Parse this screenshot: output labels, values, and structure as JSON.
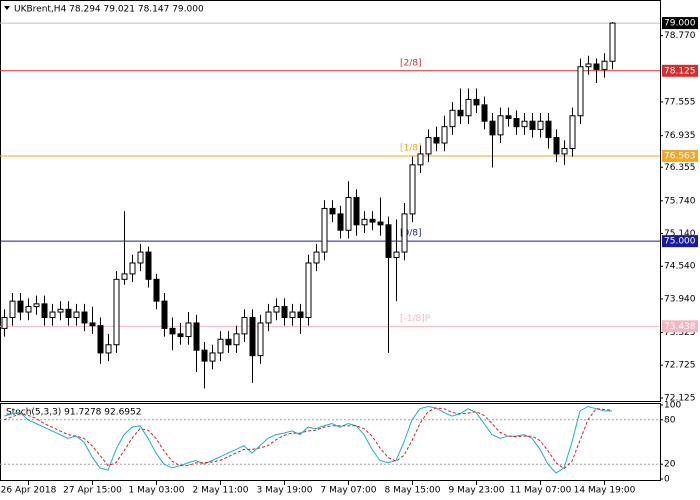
{
  "chart_data": [
    {
      "type": "candlestick",
      "title": "UKBrent,H4  78.294 79.021 78.147 79.000",
      "categories": [
        null,
        null,
        null,
        "26 Apr 2018",
        null,
        null,
        null,
        null,
        null,
        null,
        null,
        "27 Apr 15:00",
        null,
        null,
        null,
        null,
        null,
        null,
        null,
        "1 May 03:00",
        null,
        null,
        null,
        null,
        null,
        null,
        null,
        "2 May 11:00",
        null,
        null,
        null,
        null,
        null,
        null,
        null,
        "3 May 19:00",
        null,
        null,
        null,
        null,
        null,
        null,
        null,
        "7 May 07:00",
        null,
        null,
        null,
        null,
        null,
        null,
        null,
        "8 May 15:00",
        null,
        null,
        null,
        null,
        null,
        null,
        null,
        "9 May 23:00",
        null,
        null,
        null,
        null,
        null,
        null,
        null,
        "11 May 07:00",
        null,
        null,
        null,
        null,
        null,
        null,
        null,
        "14 May 19:00",
        null
      ],
      "open": [
        73.4,
        73.6,
        73.9,
        73.7,
        73.8,
        73.85,
        73.6,
        73.7,
        73.75,
        73.6,
        73.7,
        73.5,
        73.45,
        72.95,
        73.1,
        74.3,
        74.4,
        74.6,
        74.8,
        74.3,
        73.9,
        73.4,
        73.3,
        73.25,
        73.5,
        73.0,
        72.8,
        72.95,
        73.2,
        73.1,
        73.3,
        73.6,
        72.9,
        73.5,
        73.7,
        73.8,
        73.6,
        73.7,
        73.6,
        74.6,
        74.8,
        75.6,
        75.5,
        75.2,
        75.8,
        75.3,
        75.4,
        75.35,
        75.3,
        74.7,
        74.8,
        75.5,
        76.4,
        76.6,
        76.9,
        76.8,
        77.1,
        77.4,
        77.3,
        77.6,
        77.5,
        77.2,
        76.95,
        77.3,
        77.25,
        77.1,
        77.2,
        77.05,
        77.2,
        76.9,
        76.6,
        76.7,
        77.3,
        78.2,
        78.25,
        78.15,
        78.3
      ],
      "high": [
        73.75,
        74.05,
        74.05,
        73.95,
        74.0,
        74.0,
        73.85,
        73.9,
        73.9,
        73.85,
        73.85,
        73.8,
        73.6,
        73.3,
        74.45,
        75.55,
        74.75,
        74.95,
        74.9,
        74.4,
        74.05,
        73.6,
        73.5,
        73.7,
        73.65,
        73.15,
        73.1,
        73.35,
        73.35,
        73.45,
        73.75,
        73.75,
        73.65,
        73.85,
        73.95,
        73.95,
        73.85,
        73.85,
        74.75,
        74.95,
        75.75,
        75.75,
        75.65,
        76.1,
        75.95,
        75.55,
        75.55,
        75.8,
        75.45,
        75.4,
        75.7,
        76.55,
        76.75,
        77.05,
        77.1,
        77.3,
        77.55,
        77.8,
        77.8,
        77.8,
        77.65,
        77.35,
        77.45,
        77.45,
        77.4,
        77.35,
        77.35,
        77.35,
        77.35,
        77.05,
        76.85,
        77.45,
        78.35,
        78.4,
        78.35,
        78.45,
        79.02
      ],
      "low": [
        73.25,
        73.45,
        73.55,
        73.55,
        73.65,
        73.45,
        73.45,
        73.55,
        73.45,
        73.45,
        73.35,
        73.3,
        72.75,
        72.8,
        72.95,
        74.2,
        74.25,
        74.45,
        74.15,
        73.75,
        73.25,
        73.0,
        73.1,
        73.1,
        72.6,
        72.3,
        72.65,
        72.8,
        72.95,
        72.95,
        73.15,
        72.4,
        72.75,
        73.35,
        73.55,
        73.45,
        73.45,
        73.3,
        73.45,
        74.45,
        74.65,
        75.35,
        75.05,
        75.05,
        75.1,
        75.15,
        75.2,
        75.1,
        72.95,
        73.9,
        74.65,
        75.35,
        76.25,
        76.45,
        76.65,
        76.65,
        76.95,
        77.15,
        77.15,
        77.35,
        77.05,
        76.35,
        76.8,
        77.1,
        76.95,
        76.95,
        76.9,
        76.9,
        76.7,
        76.45,
        76.4,
        76.55,
        77.15,
        78.05,
        77.9,
        78.0,
        78.15
      ],
      "close": [
        73.6,
        73.9,
        73.7,
        73.8,
        73.85,
        73.6,
        73.7,
        73.75,
        73.6,
        73.7,
        73.5,
        73.45,
        72.95,
        73.1,
        74.3,
        74.4,
        74.6,
        74.8,
        74.3,
        73.9,
        73.4,
        73.3,
        73.25,
        73.5,
        73.0,
        72.8,
        72.95,
        73.2,
        73.1,
        73.3,
        73.6,
        72.9,
        73.5,
        73.7,
        73.8,
        73.6,
        73.7,
        73.6,
        74.6,
        74.8,
        75.6,
        75.5,
        75.2,
        75.8,
        75.3,
        75.4,
        75.35,
        75.3,
        74.7,
        74.8,
        75.5,
        76.4,
        76.6,
        76.9,
        76.8,
        77.1,
        77.4,
        77.3,
        77.6,
        77.5,
        77.2,
        76.95,
        77.3,
        77.25,
        77.1,
        77.2,
        77.05,
        77.2,
        76.9,
        76.6,
        76.7,
        77.3,
        78.2,
        78.25,
        78.15,
        78.3,
        79.0
      ],
      "up_color": "#ffffff",
      "down_color": "#000000",
      "ylim": [
        72.05,
        79.35
      ],
      "yticks": [
        {
          "value": 78.77,
          "label": "78.770"
        },
        {
          "value": 77.555,
          "label": "77.555"
        },
        {
          "value": 76.935,
          "label": "76.935"
        },
        {
          "value": 76.355,
          "label": "76.355"
        },
        {
          "value": 75.74,
          "label": "75.740"
        },
        {
          "value": 75.14,
          "label": "75.140"
        },
        {
          "value": 74.54,
          "label": "74.540"
        },
        {
          "value": 73.94,
          "label": "73.940"
        },
        {
          "value": 73.325,
          "label": "73.325"
        },
        {
          "value": 72.725,
          "label": "72.725"
        },
        {
          "value": 72.125,
          "label": "72.125"
        }
      ],
      "price_marker": {
        "value": 79.0,
        "label": "79.000",
        "color": "#000000"
      },
      "levels": [
        {
          "value": 78.125,
          "price_label": "78.125",
          "label": "[2/8]",
          "color": "#d32f2f"
        },
        {
          "value": 76.563,
          "price_label": "76.563",
          "label": "[1/8]",
          "color": "#f5a623"
        },
        {
          "value": 75.0,
          "price_label": "75.000",
          "label": "[0/8]",
          "color": "#1a1aa0"
        },
        {
          "value": 73.438,
          "price_label": "73.438",
          "label": "[-1/8]P",
          "color": "#f4b6c2"
        }
      ]
    },
    {
      "type": "line",
      "title": "Stoch(5,3,3) 91.7278 92.6952",
      "ylim": [
        0,
        100
      ],
      "yticks": [
        100,
        80,
        20,
        0
      ],
      "levels": [
        80,
        20
      ],
      "series": [
        {
          "color": "#17b3c4",
          "values": [
            85,
            88,
            90,
            80,
            75,
            70,
            65,
            60,
            55,
            58,
            50,
            30,
            15,
            12,
            40,
            60,
            70,
            72,
            55,
            35,
            20,
            15,
            18,
            22,
            25,
            20,
            25,
            30,
            35,
            40,
            45,
            35,
            45,
            55,
            60,
            62,
            65,
            60,
            70,
            68,
            72,
            75,
            70,
            75,
            72,
            60,
            40,
            25,
            22,
            25,
            50,
            80,
            95,
            98,
            96,
            90,
            85,
            88,
            95,
            90,
            75,
            60,
            55,
            58,
            58,
            60,
            55,
            40,
            20,
            8,
            15,
            50,
            92,
            98,
            95,
            92,
            92
          ]
        },
        {
          "color": "#d62020",
          "dashed": true,
          "values": [
            80,
            84,
            88,
            86,
            82,
            75,
            70,
            65,
            60,
            58,
            55,
            45,
            32,
            18,
            22,
            38,
            55,
            68,
            66,
            55,
            38,
            24,
            18,
            18,
            22,
            22,
            23,
            25,
            30,
            35,
            40,
            40,
            42,
            45,
            53,
            59,
            62,
            62,
            65,
            66,
            70,
            72,
            72,
            72,
            72,
            68,
            58,
            42,
            29,
            24,
            32,
            52,
            75,
            91,
            96,
            95,
            90,
            88,
            89,
            91,
            86,
            75,
            63,
            58,
            57,
            58,
            58,
            52,
            38,
            22,
            14,
            24,
            52,
            80,
            95,
            94,
            93
          ]
        }
      ]
    }
  ]
}
